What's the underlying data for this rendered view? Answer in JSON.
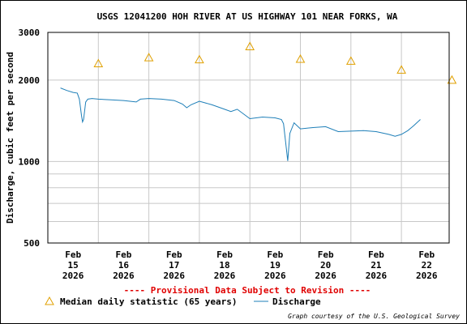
{
  "chart_data": {
    "type": "line",
    "title": "USGS 12041200 HOH RIVER AT US HIGHWAY 101 NEAR FORKS, WA",
    "ylabel": "Discharge, cubic feet per second",
    "xlabel": "",
    "y_scale": "log",
    "ylim": [
      500,
      3000
    ],
    "y_ticks": [
      "3000",
      "2000",
      "1000",
      "500"
    ],
    "y_tick_values": [
      3000,
      2000,
      1000,
      500
    ],
    "x_ticks": [
      {
        "month": "Feb",
        "day": "15",
        "year": "2026"
      },
      {
        "month": "Feb",
        "day": "16",
        "year": "2026"
      },
      {
        "month": "Feb",
        "day": "17",
        "year": "2026"
      },
      {
        "month": "Feb",
        "day": "18",
        "year": "2026"
      },
      {
        "month": "Feb",
        "day": "19",
        "year": "2026"
      },
      {
        "month": "Feb",
        "day": "20",
        "year": "2026"
      },
      {
        "month": "Feb",
        "day": "21",
        "year": "2026"
      },
      {
        "month": "Feb",
        "day": "22",
        "year": "2026"
      }
    ],
    "grid": true,
    "series": [
      {
        "name": "Median daily statistic (65 years)",
        "kind": "markers",
        "marker": "triangle",
        "color": "#e0a000",
        "x": [
          "2026-02-15 12:00",
          "2026-02-16 12:00",
          "2026-02-17 12:00",
          "2026-02-18 12:00",
          "2026-02-19 12:00",
          "2026-02-20 12:00",
          "2026-02-21 12:00",
          "2026-02-22 12:00"
        ],
        "values": [
          2300,
          2420,
          2380,
          2660,
          2390,
          2350,
          2180,
          2000
        ]
      },
      {
        "name": "Discharge",
        "kind": "line",
        "color": "#1e7fb8",
        "x": [
          "2026-02-14 18:00",
          "2026-02-14 21:00",
          "2026-02-15 00:00",
          "2026-02-15 02:00",
          "2026-02-15 03:00",
          "2026-02-15 04:00",
          "2026-02-15 04:30",
          "2026-02-15 05:00",
          "2026-02-15 06:00",
          "2026-02-15 07:00",
          "2026-02-15 09:00",
          "2026-02-15 12:00",
          "2026-02-15 18:00",
          "2026-02-16 00:00",
          "2026-02-16 06:00",
          "2026-02-16 08:00",
          "2026-02-16 12:00",
          "2026-02-16 18:00",
          "2026-02-17 00:00",
          "2026-02-17 04:00",
          "2026-02-17 06:00",
          "2026-02-17 08:00",
          "2026-02-17 12:00",
          "2026-02-17 18:00",
          "2026-02-18 00:00",
          "2026-02-18 03:00",
          "2026-02-18 06:00",
          "2026-02-18 12:00",
          "2026-02-18 18:00",
          "2026-02-19 00:00",
          "2026-02-19 03:00",
          "2026-02-19 04:00",
          "2026-02-19 05:00",
          "2026-02-19 06:00",
          "2026-02-19 07:00",
          "2026-02-19 09:00",
          "2026-02-19 12:00",
          "2026-02-19 18:00",
          "2026-02-20 00:00",
          "2026-02-20 06:00",
          "2026-02-20 12:00",
          "2026-02-20 18:00",
          "2026-02-21 00:00",
          "2026-02-21 06:00",
          "2026-02-21 09:00",
          "2026-02-21 12:00",
          "2026-02-21 15:00",
          "2026-02-21 18:00",
          "2026-02-21 21:00"
        ],
        "values": [
          1870,
          1830,
          1800,
          1790,
          1700,
          1480,
          1400,
          1430,
          1660,
          1700,
          1710,
          1700,
          1690,
          1680,
          1660,
          1700,
          1710,
          1700,
          1680,
          1630,
          1580,
          1620,
          1670,
          1620,
          1560,
          1530,
          1560,
          1440,
          1460,
          1450,
          1430,
          1380,
          1180,
          1005,
          1270,
          1390,
          1320,
          1335,
          1345,
          1290,
          1295,
          1300,
          1290,
          1260,
          1240,
          1260,
          1300,
          1360,
          1430
        ]
      }
    ]
  },
  "provisional_notice": "---- Provisional Data Subject to Revision ----",
  "provisional_color": "#e00000",
  "legend": {
    "median_label": "Median daily statistic (65 years)",
    "discharge_label": "Discharge"
  },
  "credit": "Graph courtesy of the U.S. Geological Survey"
}
